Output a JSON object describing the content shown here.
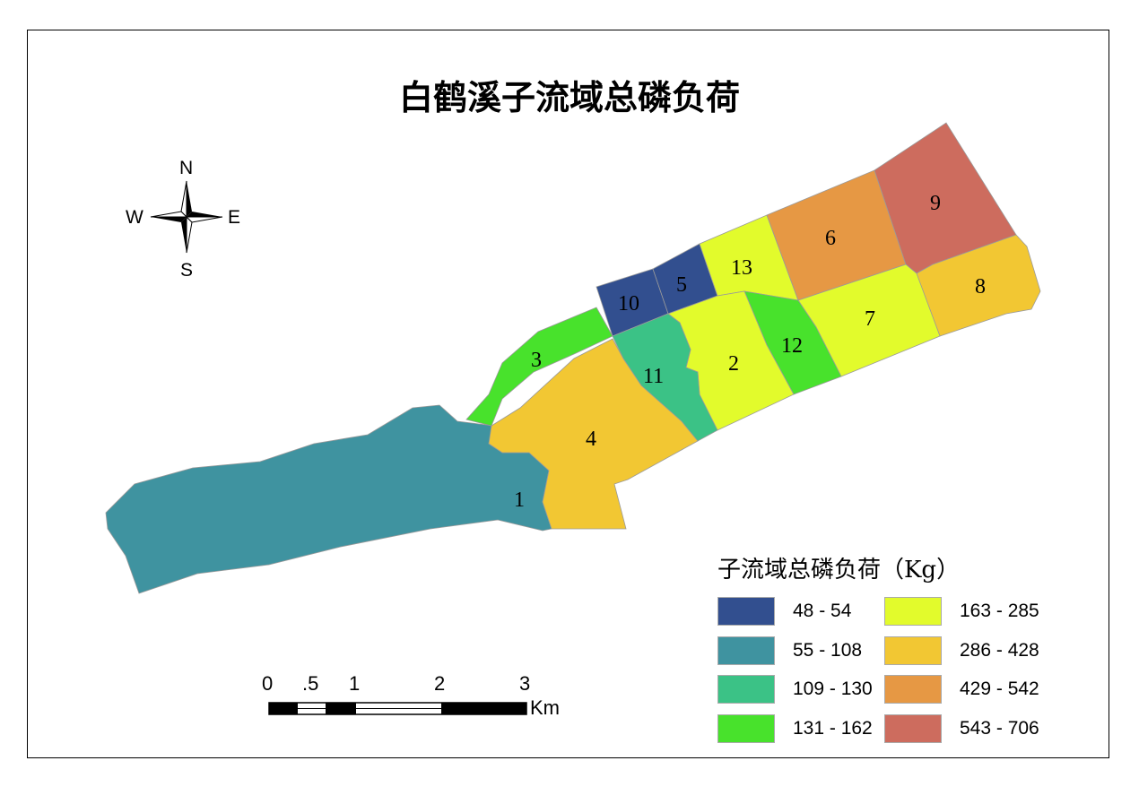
{
  "title": "白鹤溪子流域总磷负荷",
  "compass": {
    "north": "N",
    "south": "S",
    "east": "E",
    "west": "W"
  },
  "scale_bar": {
    "ticks": [
      "0",
      ".5",
      "1",
      "2",
      "3"
    ],
    "unit": "Km"
  },
  "legend": {
    "title": "子流域总磷负荷（Kg）",
    "classes": [
      {
        "label": "48 - 54",
        "color": "#324f8f"
      },
      {
        "label": "55 - 108",
        "color": "#3f93a0"
      },
      {
        "label": "109 - 130",
        "color": "#3bc286"
      },
      {
        "label": "131 - 162",
        "color": "#48e22c"
      },
      {
        "label": "163 - 285",
        "color": "#e2fb2c"
      },
      {
        "label": "286 - 428",
        "color": "#f2c733"
      },
      {
        "label": "429 - 542",
        "color": "#e69844"
      },
      {
        "label": "543 - 706",
        "color": "#cd6c5e"
      }
    ]
  },
  "subbasins": [
    {
      "id": "1",
      "class": 1
    },
    {
      "id": "2",
      "class": 4
    },
    {
      "id": "3",
      "class": 3
    },
    {
      "id": "4",
      "class": 5
    },
    {
      "id": "5",
      "class": 0
    },
    {
      "id": "6",
      "class": 6
    },
    {
      "id": "7",
      "class": 4
    },
    {
      "id": "8",
      "class": 5
    },
    {
      "id": "9",
      "class": 7
    },
    {
      "id": "10",
      "class": 0
    },
    {
      "id": "11",
      "class": 2
    },
    {
      "id": "12",
      "class": 3
    },
    {
      "id": "13",
      "class": 4
    }
  ]
}
